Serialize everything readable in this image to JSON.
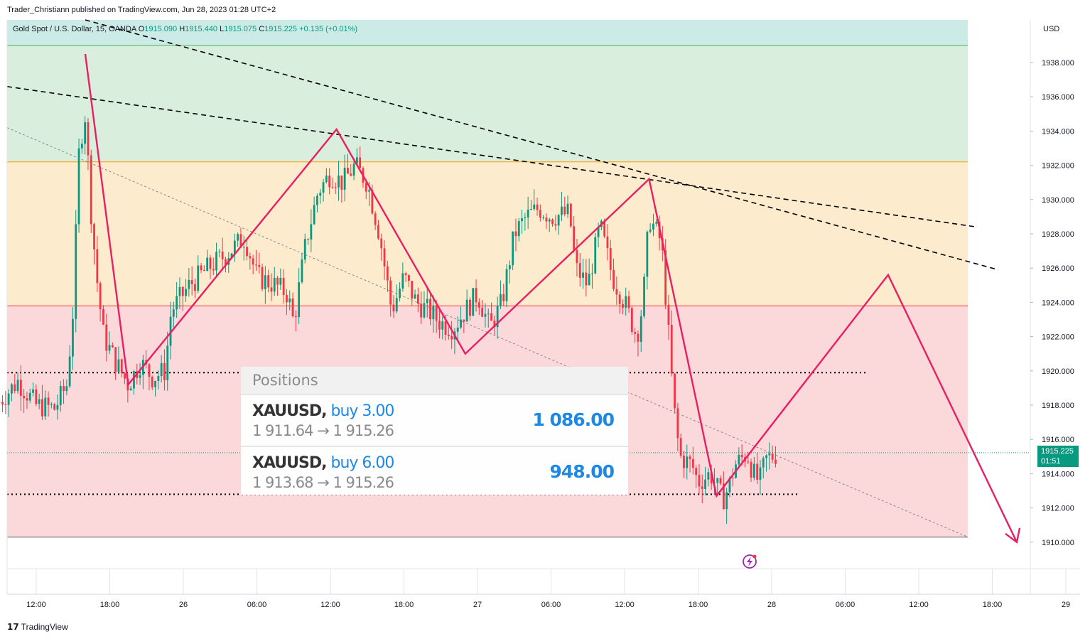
{
  "header": {
    "publisher_line": "Trader_Christiann published on TradingView.com, Jun 28, 2023 01:28 UTC+2",
    "symbol": "Gold Spot / U.S. Dollar, 15, OANDA",
    "open_label": "O",
    "open": "1915.090",
    "high_label": "H",
    "high": "1915.440",
    "low_label": "L",
    "low": "1915.075",
    "close_label": "C",
    "close": "1915.225",
    "change": "+0.135 (+0.01%)"
  },
  "price_axis": {
    "currency": "USD",
    "current_price": "1915.225",
    "countdown": "01:51"
  },
  "chart_data": {
    "type": "candlestick",
    "y_ticks": [
      "1938.000",
      "1936.000",
      "1934.000",
      "1932.000",
      "1930.000",
      "1928.000",
      "1926.000",
      "1924.000",
      "1922.000",
      "1920.000",
      "1918.000",
      "1916.000",
      "1914.000",
      "1912.000",
      "1910.000"
    ],
    "ylim": [
      1909.2,
      1941.6
    ],
    "x_ticks": [
      "12:00",
      "18:00",
      "26",
      "06:00",
      "12:00",
      "18:00",
      "27",
      "06:00",
      "12:00",
      "18:00",
      "28",
      "06:00",
      "12:00",
      "18:00",
      "29"
    ],
    "last_price": 1915.225,
    "zones": [
      {
        "name": "green",
        "from": 1932.2,
        "to": 1939.0,
        "color": "#d9eedc"
      },
      {
        "name": "orange",
        "from": 1923.8,
        "to": 1932.2,
        "color": "#fdebcd"
      },
      {
        "name": "red",
        "from": 1910.3,
        "to": 1923.8,
        "color": "#fbd8da"
      },
      {
        "name": "teal",
        "from": 1939.0,
        "to": 1941.6,
        "color": "#cdebe6"
      }
    ],
    "levels": [
      1919.9,
      1912.8
    ],
    "zigzag": [
      {
        "t": "06-25 16:00",
        "p": 1938.5
      },
      {
        "t": "06-25 19:30",
        "p": 1919.2
      },
      {
        "t": "06-26 12:30",
        "p": 1934.1
      },
      {
        "t": "06-26 23:00",
        "p": 1921.0
      },
      {
        "t": "06-27 14:00",
        "p": 1931.2
      },
      {
        "t": "06-27 19:30",
        "p": 1912.7
      },
      {
        "t": "06-28 09:30",
        "p": 1925.6
      },
      {
        "t": "06-28 20:00",
        "p": 1910.0
      }
    ],
    "ohlc_path": [
      {
        "t": "06-25 09:00",
        "p": 1918.2
      },
      {
        "t": "06-25 10:30",
        "p": 1919.4
      },
      {
        "t": "06-25 12:00",
        "p": 1918.0
      },
      {
        "t": "06-25 13:30",
        "p": 1917.8
      },
      {
        "t": "06-25 14:30",
        "p": 1919.2
      },
      {
        "t": "06-25 15:00",
        "p": 1923.5
      },
      {
        "t": "06-25 15:30",
        "p": 1933.0
      },
      {
        "t": "06-25 16:00",
        "p": 1935.0
      },
      {
        "t": "06-25 16:30",
        "p": 1929.0
      },
      {
        "t": "06-25 17:00",
        "p": 1925.0
      },
      {
        "t": "06-25 17:30",
        "p": 1922.0
      },
      {
        "t": "06-25 18:30",
        "p": 1920.5
      },
      {
        "t": "06-25 19:30",
        "p": 1919.2
      },
      {
        "t": "06-25 20:30",
        "p": 1920.5
      },
      {
        "t": "06-25 21:30",
        "p": 1919.6
      },
      {
        "t": "06-25 22:30",
        "p": 1920.0
      },
      {
        "t": "06-25 23:00",
        "p": 1923.5
      },
      {
        "t": "06-26 00:30",
        "p": 1925.0
      },
      {
        "t": "06-26 02:00",
        "p": 1926.0
      },
      {
        "t": "06-26 03:30",
        "p": 1926.8
      },
      {
        "t": "06-26 05:00",
        "p": 1927.8
      },
      {
        "t": "06-26 06:00",
        "p": 1925.5
      },
      {
        "t": "06-26 07:30",
        "p": 1925.0
      },
      {
        "t": "06-26 08:30",
        "p": 1924.5
      },
      {
        "t": "06-26 09:00",
        "p": 1922.8
      },
      {
        "t": "06-26 10:00",
        "p": 1927.5
      },
      {
        "t": "06-26 11:00",
        "p": 1930.5
      },
      {
        "t": "06-26 12:00",
        "p": 1931.5
      },
      {
        "t": "06-26 13:00",
        "p": 1931.0
      },
      {
        "t": "06-26 14:00",
        "p": 1932.0
      },
      {
        "t": "06-26 15:00",
        "p": 1931.0
      },
      {
        "t": "06-26 16:00",
        "p": 1928.0
      },
      {
        "t": "06-26 17:00",
        "p": 1923.5
      },
      {
        "t": "06-26 18:00",
        "p": 1925.5
      },
      {
        "t": "06-26 19:00",
        "p": 1924.0
      },
      {
        "t": "06-26 20:00",
        "p": 1923.5
      },
      {
        "t": "06-26 21:00",
        "p": 1922.8
      },
      {
        "t": "06-26 22:00",
        "p": 1922.5
      },
      {
        "t": "06-26 23:00",
        "p": 1923.5
      },
      {
        "t": "06-27 00:00",
        "p": 1924.5
      },
      {
        "t": "06-27 01:00",
        "p": 1922.5
      },
      {
        "t": "06-27 02:00",
        "p": 1924.0
      },
      {
        "t": "06-27 03:00",
        "p": 1928.0
      },
      {
        "t": "06-27 04:00",
        "p": 1929.0
      },
      {
        "t": "06-27 05:00",
        "p": 1929.5
      },
      {
        "t": "06-27 06:00",
        "p": 1929.0
      },
      {
        "t": "06-27 07:30",
        "p": 1929.2
      },
      {
        "t": "06-27 08:00",
        "p": 1926.0
      },
      {
        "t": "06-27 09:00",
        "p": 1925.0
      },
      {
        "t": "06-27 10:00",
        "p": 1928.5
      },
      {
        "t": "06-27 11:00",
        "p": 1925.5
      },
      {
        "t": "06-27 12:00",
        "p": 1924.0
      },
      {
        "t": "06-27 13:00",
        "p": 1922.0
      },
      {
        "t": "06-27 13:30",
        "p": 1924.0
      },
      {
        "t": "06-27 14:00",
        "p": 1929.0
      },
      {
        "t": "06-27 15:00",
        "p": 1927.5
      },
      {
        "t": "06-27 15:30",
        "p": 1923.0
      },
      {
        "t": "06-27 16:00",
        "p": 1918.0
      },
      {
        "t": "06-27 16:30",
        "p": 1915.0
      },
      {
        "t": "06-27 17:30",
        "p": 1914.5
      },
      {
        "t": "06-27 18:00",
        "p": 1913.5
      },
      {
        "t": "06-27 19:00",
        "p": 1914.0
      },
      {
        "t": "06-27 20:00",
        "p": 1912.5
      },
      {
        "t": "06-27 20:30",
        "p": 1913.2
      },
      {
        "t": "06-27 21:00",
        "p": 1914.5
      },
      {
        "t": "06-27 22:00",
        "p": 1915.2
      },
      {
        "t": "06-27 22:30",
        "p": 1914.0
      },
      {
        "t": "06-27 23:00",
        "p": 1913.5
      },
      {
        "t": "06-27 23:30",
        "p": 1914.8
      },
      {
        "t": "06-28 00:30",
        "p": 1915.2
      }
    ]
  },
  "positions": {
    "title": "Positions",
    "rows": [
      {
        "symbol": "XAUUSD,",
        "side": " buy 3.00",
        "prices": "1 911.64 → 1 915.26",
        "pnl": "1 086.00"
      },
      {
        "symbol": "XAUUSD,",
        "side": " buy 6.00",
        "prices": "1 913.68 → 1 915.26",
        "pnl": "948.00"
      }
    ]
  },
  "footer": {
    "logo_mark": "𝟭𝟳",
    "logo_text": "TradingView"
  },
  "colors": {
    "up": "#089981",
    "down": "#f23645",
    "zigzag": "#e91e63",
    "accent": "#1e88e5"
  }
}
